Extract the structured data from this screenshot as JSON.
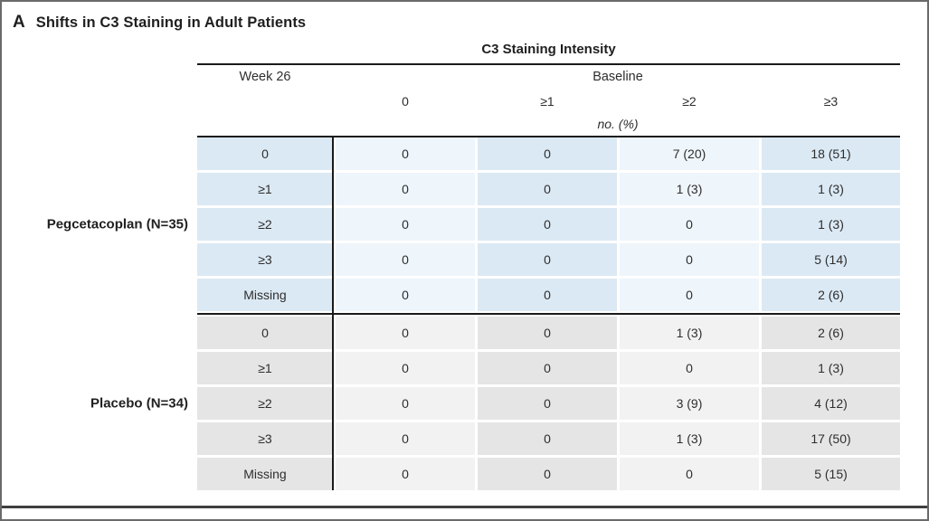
{
  "panel": {
    "letter": "A",
    "title": "Shifts in C3 Staining in Adult Patients"
  },
  "table": {
    "spanner": "C3 Staining Intensity",
    "row_axis_label": "Week 26",
    "col_axis_label": "Baseline",
    "columns": [
      "0",
      "≥1",
      "≥2",
      "≥3"
    ],
    "unit_note": "no. (%)",
    "groups": [
      {
        "label": "Pegcetacoplan (N=35)",
        "scheme": "blue",
        "rows": [
          {
            "label": "0",
            "values": [
              "0",
              "0",
              "7 (20)",
              "18 (51)"
            ]
          },
          {
            "label": "≥1",
            "values": [
              "0",
              "0",
              "1 (3)",
              "1 (3)"
            ]
          },
          {
            "label": "≥2",
            "values": [
              "0",
              "0",
              "0",
              "1 (3)"
            ]
          },
          {
            "label": "≥3",
            "values": [
              "0",
              "0",
              "0",
              "5 (14)"
            ]
          },
          {
            "label": "Missing",
            "values": [
              "0",
              "0",
              "0",
              "2 (6)"
            ]
          }
        ]
      },
      {
        "label": "Placebo (N=34)",
        "scheme": "gray",
        "rows": [
          {
            "label": "0",
            "values": [
              "0",
              "0",
              "1 (3)",
              "2 (6)"
            ]
          },
          {
            "label": "≥1",
            "values": [
              "0",
              "0",
              "0",
              "1 (3)"
            ]
          },
          {
            "label": "≥2",
            "values": [
              "0",
              "0",
              "3 (9)",
              "4 (12)"
            ]
          },
          {
            "label": "≥3",
            "values": [
              "0",
              "0",
              "1 (3)",
              "17 (50)"
            ]
          },
          {
            "label": "Missing",
            "values": [
              "0",
              "0",
              "0",
              "5 (15)"
            ]
          }
        ]
      }
    ]
  },
  "colors": {
    "blue_dark": "#dbe9f4",
    "blue_light": "#eef5fb",
    "gray_dark": "#e5e5e5",
    "gray_light": "#f2f2f2",
    "rule": "#1a1a1a",
    "text": "#2e2e2e"
  },
  "chart_data": {
    "type": "table",
    "title": "C3 Staining Intensity",
    "row_header": "Week 26",
    "col_header": "Baseline",
    "columns": [
      "0",
      "≥1",
      "≥2",
      "≥3"
    ],
    "unit": "no. (%)",
    "groups": [
      {
        "name": "Pegcetacoplan (N=35)",
        "rows": [
          [
            "0",
            "0",
            "0",
            "7 (20)",
            "18 (51)"
          ],
          [
            "≥1",
            "0",
            "0",
            "1 (3)",
            "1 (3)"
          ],
          [
            "≥2",
            "0",
            "0",
            "0",
            "1 (3)"
          ],
          [
            "≥3",
            "0",
            "0",
            "0",
            "5 (14)"
          ],
          [
            "Missing",
            "0",
            "0",
            "0",
            "2 (6)"
          ]
        ]
      },
      {
        "name": "Placebo (N=34)",
        "rows": [
          [
            "0",
            "0",
            "0",
            "1 (3)",
            "2 (6)"
          ],
          [
            "≥1",
            "0",
            "0",
            "0",
            "1 (3)"
          ],
          [
            "≥2",
            "0",
            "0",
            "3 (9)",
            "4 (12)"
          ],
          [
            "≥3",
            "0",
            "0",
            "1 (3)",
            "17 (50)"
          ],
          [
            "Missing",
            "0",
            "0",
            "0",
            "5 (15)"
          ]
        ]
      }
    ]
  }
}
